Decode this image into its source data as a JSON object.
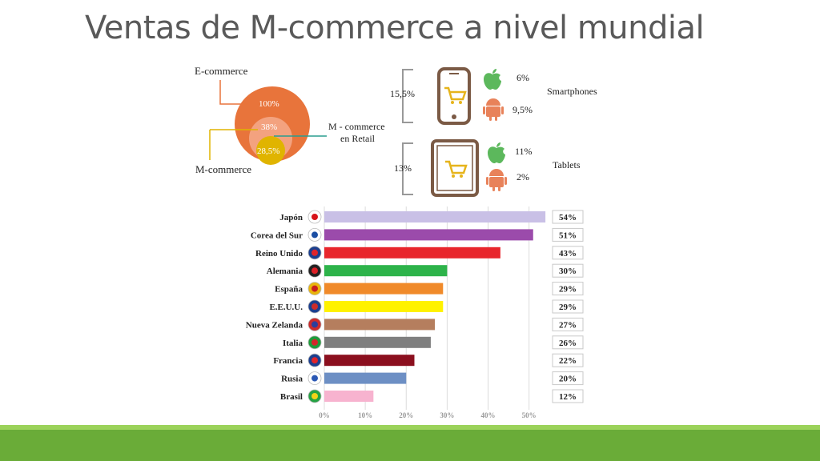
{
  "slide": {
    "title": "Ventas de M-commerce a nivel mundial"
  },
  "venn": {
    "ecommerce_label": "E-commerce",
    "mcommerce_label": "M-commerce",
    "retail_label_1": "M - commerce",
    "retail_label_2": "en Retail",
    "outer_value": "100%",
    "middle_value": "38%",
    "inner_value": "28,5%",
    "colors": {
      "outer": "#e8743b",
      "inner": "#e0b400",
      "retail_line": "#2a9d8f"
    }
  },
  "devices": {
    "smartphones": {
      "label": "Smartphones",
      "total": "15,5%",
      "ios": "6%",
      "android": "9,5%"
    },
    "tablets": {
      "label": "Tablets",
      "total": "13%",
      "ios": "11%",
      "android": "2%"
    },
    "icons": {
      "device_color": "#7b5a45",
      "cart_color": "#e6b41c",
      "apple_color": "#5cb85c",
      "android_color": "#e8825a"
    }
  },
  "chart_data": {
    "type": "bar",
    "orientation": "horizontal",
    "categories": [
      "Japón",
      "Corea del Sur",
      "Reino Unido",
      "Alemania",
      "España",
      "E.E.U.U.",
      "Nueva Zelanda",
      "Italia",
      "Francia",
      "Rusia",
      "Brasil"
    ],
    "values": [
      54,
      51,
      43,
      30,
      29,
      29,
      27,
      26,
      22,
      20,
      12
    ],
    "labels": [
      "54%",
      "51%",
      "43%",
      "30%",
      "29%",
      "29%",
      "27%",
      "26%",
      "22%",
      "20%",
      "12%"
    ],
    "bar_colors": [
      "#c9c0e6",
      "#9b4bab",
      "#e8262c",
      "#2db34a",
      "#f08a2a",
      "#fff200",
      "#b57e5e",
      "#7f7f7f",
      "#8b0f1e",
      "#6d8fc4",
      "#f7b3cf"
    ],
    "xlim": [
      0,
      53
    ],
    "xticks": [
      0,
      10,
      20,
      30,
      40,
      50
    ],
    "xtick_labels": [
      "0%",
      "10%",
      "20%",
      "30%",
      "40%",
      "50%"
    ],
    "grid": true,
    "flag_icons": [
      "japan-flag-icon",
      "korea-flag-icon",
      "uk-flag-icon",
      "germany-flag-icon",
      "spain-flag-icon",
      "usa-flag-icon",
      "netherlands-flag-icon",
      "italy-flag-icon",
      "france-flag-icon",
      "russia-flag-icon",
      "brazil-flag-icon"
    ]
  }
}
